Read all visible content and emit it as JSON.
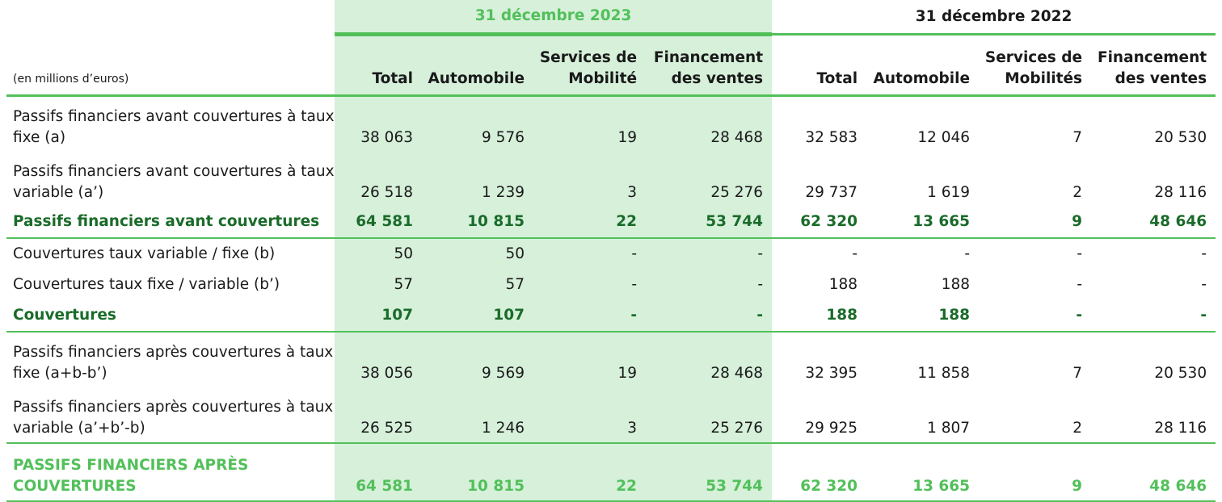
{
  "header": {
    "period_2023": "31 décembre 2023",
    "period_2022": "31 décembre 2022",
    "unit": "(en millions d’euros)",
    "columns_2023": [
      "Total",
      "Automobile",
      "Services de Mobilité",
      "Financement des ventes"
    ],
    "columns_2022": [
      "Total",
      "Automobile",
      "Services de Mobilités",
      "Financement des ventes"
    ]
  },
  "rows": [
    {
      "label": "Passifs financiers avant couvertures à taux fixe (a)",
      "v": [
        "38 063",
        "9 576",
        "19",
        "28 468",
        "32 583",
        "12 046",
        "7",
        "20 530"
      ]
    },
    {
      "label": "Passifs financiers avant couvertures à taux variable (a’)",
      "v": [
        "26 518",
        "1 239",
        "3",
        "25 276",
        "29 737",
        "1 619",
        "2",
        "28 116"
      ]
    },
    {
      "label": "Passifs financiers avant couvertures",
      "v": [
        "64 581",
        "10 815",
        "22",
        "53 744",
        "62 320",
        "13 665",
        "9",
        "48 646"
      ]
    },
    {
      "label": "Couvertures taux variable / fixe (b)",
      "v": [
        "50",
        "50",
        "-",
        "-",
        "-",
        "-",
        "-",
        "-"
      ]
    },
    {
      "label": "Couvertures taux fixe / variable (b’)",
      "v": [
        "57",
        "57",
        "-",
        "-",
        "188",
        "188",
        "-",
        "-"
      ]
    },
    {
      "label": "Couvertures",
      "v": [
        "107",
        "107",
        "-",
        "-",
        "188",
        "188",
        "-",
        "-"
      ]
    },
    {
      "label": "Passifs financiers après couvertures à taux fixe (a+b-b’)",
      "v": [
        "38 056",
        "9 569",
        "19",
        "28 468",
        "32 395",
        "11 858",
        "7",
        "20 530"
      ]
    },
    {
      "label": "Passifs financiers après couvertures à taux variable (a’+b’-b)",
      "v": [
        "26 525",
        "1 246",
        "3",
        "25 276",
        "29 925",
        "1 807",
        "2",
        "28 116"
      ]
    },
    {
      "label": "PASSIFS FINANCIERS APRÈS COUVERTURES",
      "v": [
        "64 581",
        "10 815",
        "22",
        "53 744",
        "62 320",
        "13 665",
        "9",
        "48 646"
      ]
    }
  ]
}
